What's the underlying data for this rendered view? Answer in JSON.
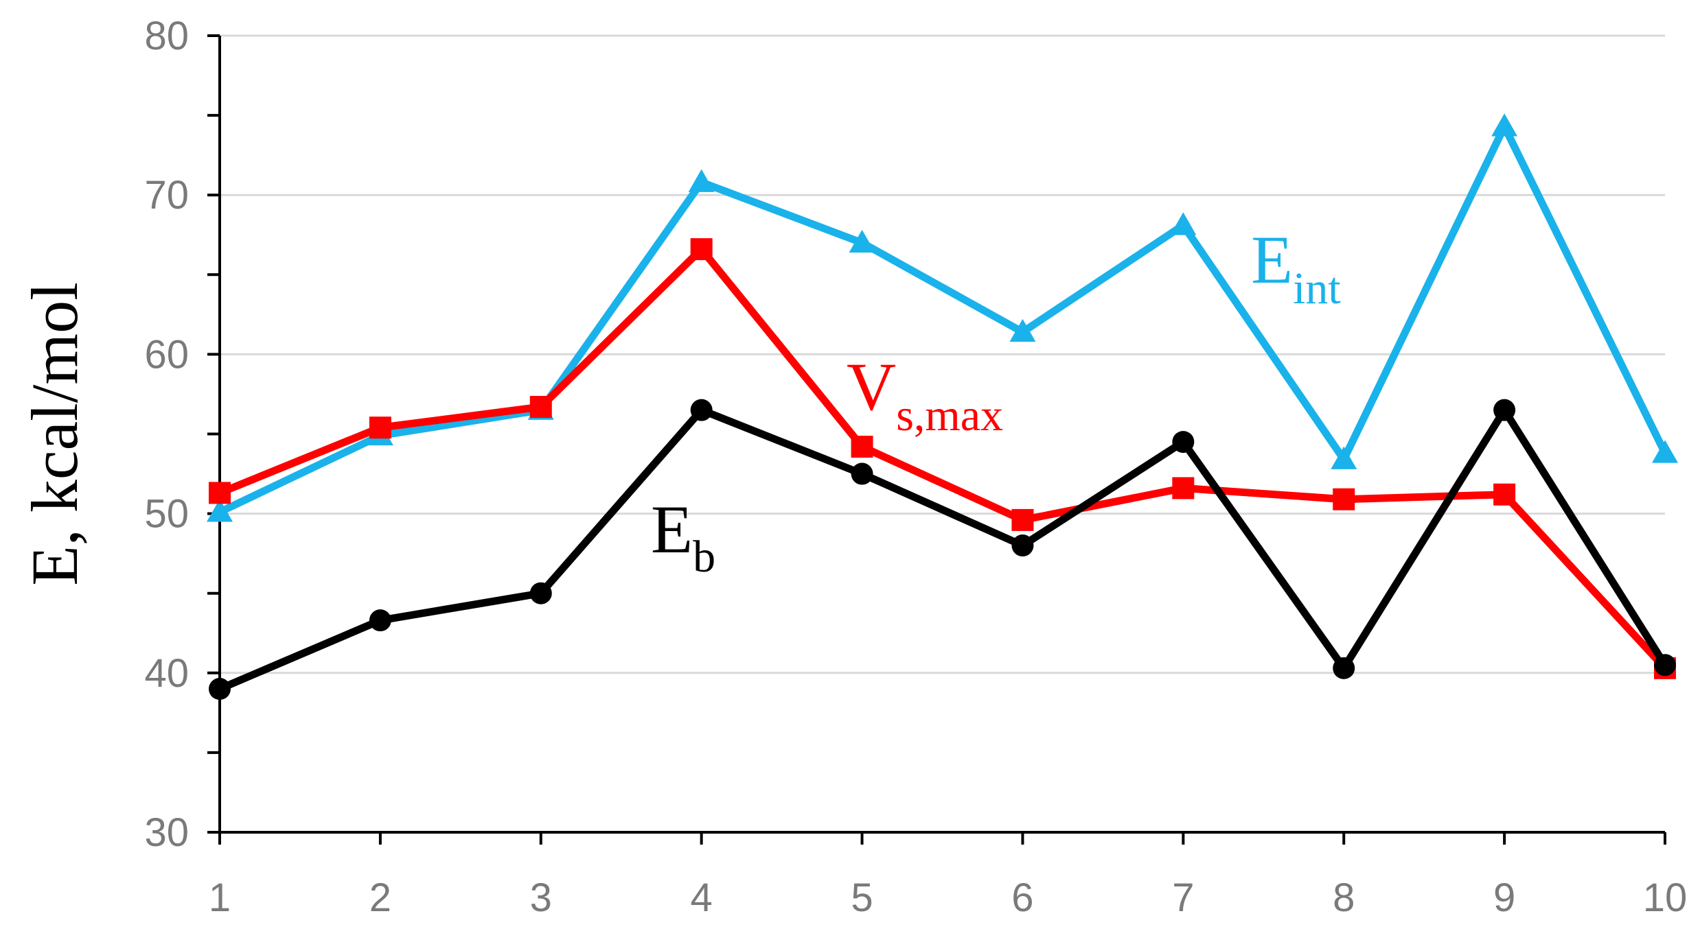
{
  "chart_data": {
    "type": "line",
    "x": [
      1,
      2,
      3,
      4,
      5,
      6,
      7,
      8,
      9,
      10
    ],
    "ylabel": "E, kcal/mol",
    "xlabel": "",
    "ylim": [
      30,
      80
    ],
    "xlim": [
      1,
      10
    ],
    "y_ticks": [
      30,
      40,
      50,
      60,
      70,
      80
    ],
    "x_ticks": [
      1,
      2,
      3,
      4,
      5,
      6,
      7,
      8,
      9,
      10
    ],
    "grid": "horizontal",
    "series": [
      {
        "key": "eint",
        "label_main": "E",
        "label_sub": "int",
        "color": "#1ab2ea",
        "marker": "triangle",
        "values": [
          50.1,
          54.9,
          56.5,
          70.8,
          67.0,
          61.4,
          68.1,
          53.4,
          74.3,
          53.8
        ]
      },
      {
        "key": "vsmax",
        "label_main": "V",
        "label_sub": "s,max",
        "color": "#ff0000",
        "marker": "square",
        "values": [
          51.3,
          55.4,
          56.7,
          66.6,
          54.2,
          49.6,
          51.6,
          50.9,
          51.2,
          40.3
        ]
      },
      {
        "key": "eb",
        "label_main": "E",
        "label_sub": "b",
        "color": "#000000",
        "marker": "circle",
        "values": [
          39.0,
          43.3,
          45.0,
          56.5,
          52.5,
          48.0,
          54.5,
          40.3,
          56.5,
          40.5
        ]
      }
    ]
  }
}
